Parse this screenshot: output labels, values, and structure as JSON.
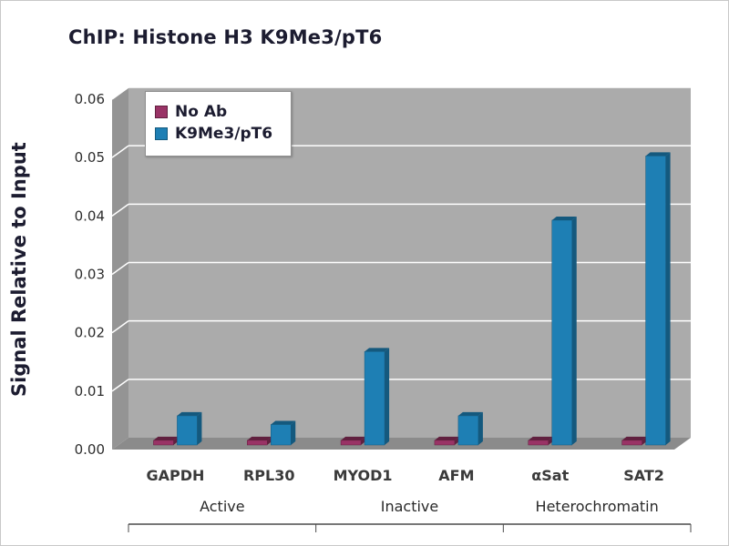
{
  "colors": {
    "plot_wall": "#ababab",
    "plot_wall_side": "#949494",
    "plot_floor": "#8b8b8b",
    "gridline": "#ffffff",
    "axis_line": "#4a4a4a",
    "title_text": "#1c1c30"
  },
  "chart_data": {
    "type": "bar",
    "title": "ChIP: Histone H3 K9Me3/pT6",
    "ylabel": "Signal Relative to Input",
    "xlabel": "",
    "ylim": [
      0,
      0.06
    ],
    "ytick_labels": [
      "0.00",
      "0.01",
      "0.02",
      "0.03",
      "0.04",
      "0.05",
      "0.06"
    ],
    "grid": true,
    "legend_position": "top-left",
    "style": "3d-gray-wall",
    "categories": [
      "GAPDH",
      "RPL30",
      "MYOD1",
      "AFM",
      "αSat",
      "SAT2"
    ],
    "groups": [
      {
        "label": "Active",
        "categories": [
          0,
          1
        ]
      },
      {
        "label": "Inactive",
        "categories": [
          2,
          3
        ]
      },
      {
        "label": "Heterochromatin",
        "categories": [
          4,
          5
        ]
      }
    ],
    "series": [
      {
        "name": "No Ab",
        "color": "#993366",
        "color_dark": "#61203f",
        "values": [
          0.0008,
          0.0008,
          0.0008,
          0.0008,
          0.0008,
          0.0008
        ]
      },
      {
        "name": "K9Me3/pT6",
        "color": "#1e7fb4",
        "color_dark": "#14597e",
        "values": [
          0.005,
          0.0035,
          0.016,
          0.005,
          0.0385,
          0.0495
        ]
      }
    ]
  }
}
